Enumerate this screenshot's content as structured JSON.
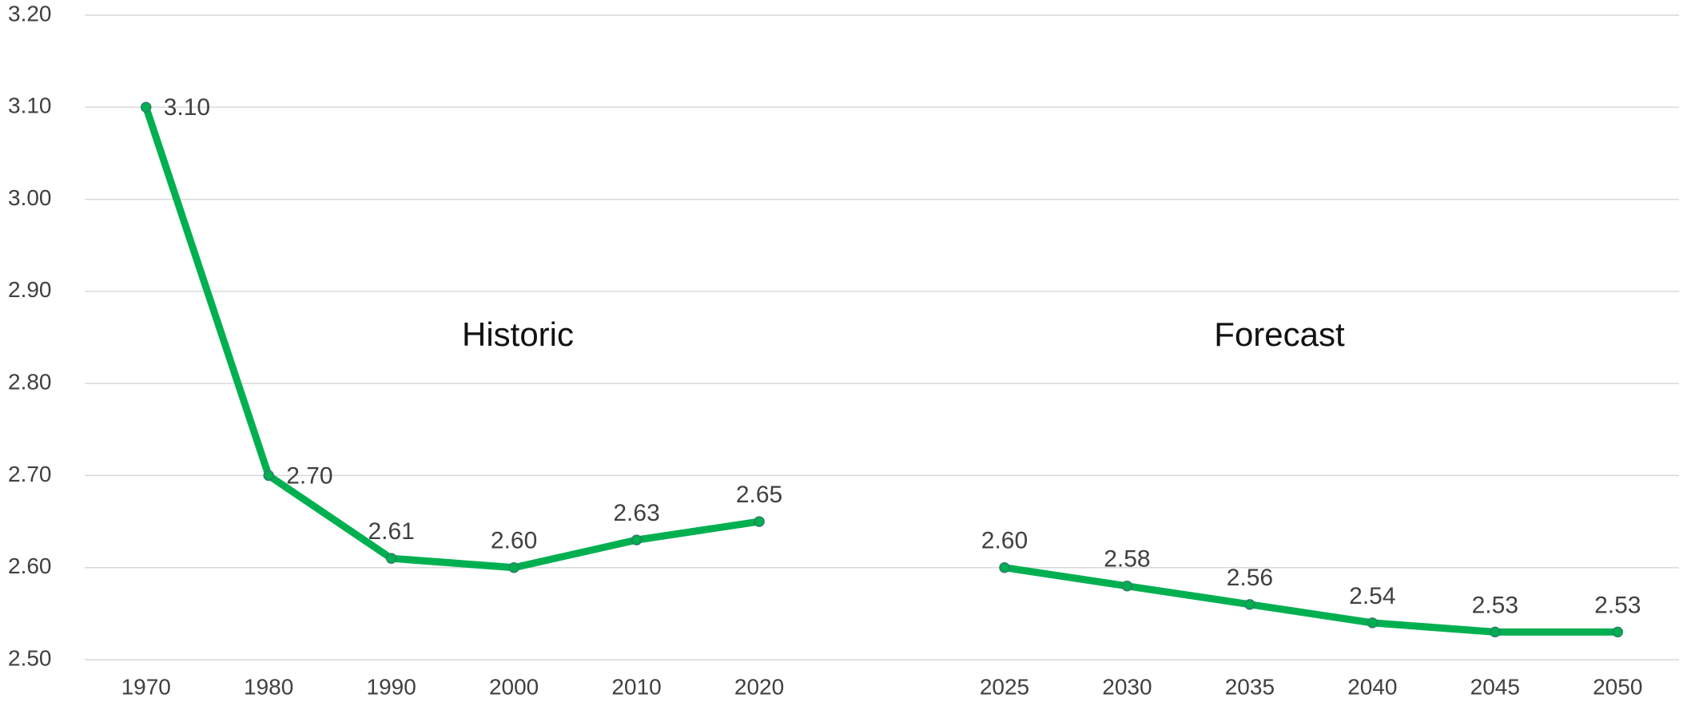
{
  "chart_data": {
    "type": "line",
    "categories": [
      "1970",
      "1980",
      "1990",
      "2000",
      "2010",
      "2020",
      null,
      "2025",
      "2030",
      "2035",
      "2040",
      "2045",
      "2050"
    ],
    "series": [
      {
        "color": "#00b050",
        "values": [
          3.1,
          2.7,
          2.61,
          2.6,
          2.63,
          2.65,
          null,
          2.6,
          2.58,
          2.56,
          2.54,
          2.53,
          2.53
        ],
        "value_labels": [
          "3.10",
          "2.70",
          "2.61",
          "2.60",
          "2.63",
          "2.65",
          null,
          "2.60",
          "2.58",
          "2.56",
          "2.54",
          "2.53",
          "2.53"
        ]
      }
    ],
    "ylim": [
      2.5,
      3.2
    ],
    "yticks": [
      {
        "value": 2.5,
        "label": "2.50"
      },
      {
        "value": 2.6,
        "label": "2.60"
      },
      {
        "value": 2.7,
        "label": "2.70"
      },
      {
        "value": 2.8,
        "label": "2.80"
      },
      {
        "value": 2.9,
        "label": "2.90"
      },
      {
        "value": 3.0,
        "label": "3.00"
      },
      {
        "value": 3.1,
        "label": "3.10"
      },
      {
        "value": 3.2,
        "label": "3.20"
      }
    ],
    "grid": true,
    "annotations": [
      "Historic",
      "Forecast"
    ]
  }
}
